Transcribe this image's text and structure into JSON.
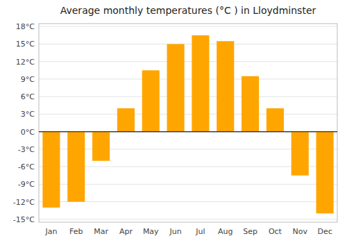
{
  "chart_data": {
    "type": "bar",
    "title": "Average monthly temperatures (°C ) in Lloydminster",
    "categories": [
      "Jan",
      "Feb",
      "Mar",
      "Apr",
      "May",
      "Jun",
      "Jul",
      "Aug",
      "Sep",
      "Oct",
      "Nov",
      "Dec"
    ],
    "values": [
      -13,
      -12,
      -5,
      4,
      10.5,
      15,
      16.5,
      15.5,
      9.5,
      4,
      -7.5,
      -14
    ],
    "color": "#FFA500",
    "ylim": [
      -15.5,
      18.5
    ],
    "yticks": [
      {
        "value": -15,
        "label": "-15°C"
      },
      {
        "value": -12,
        "label": "-12°C"
      },
      {
        "value": -9,
        "label": "-9°C"
      },
      {
        "value": -6,
        "label": "-6°C"
      },
      {
        "value": -3,
        "label": "-3°C"
      },
      {
        "value": 0,
        "label": "0°C"
      },
      {
        "value": 3,
        "label": "3°C"
      },
      {
        "value": 6,
        "label": "6°C"
      },
      {
        "value": 9,
        "label": "9°C"
      },
      {
        "value": 12,
        "label": "12°C"
      },
      {
        "value": 15,
        "label": "15°C"
      },
      {
        "value": 18,
        "label": "18°C"
      }
    ],
    "grid": true
  }
}
